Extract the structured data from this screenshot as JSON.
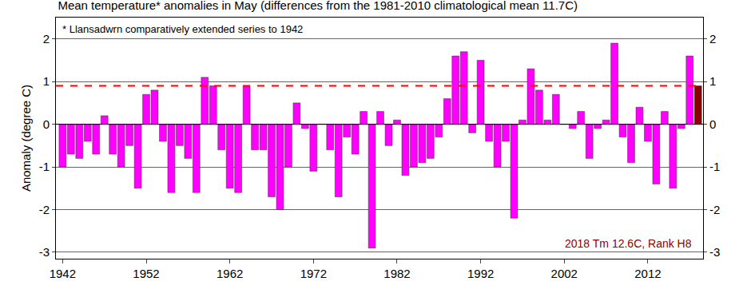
{
  "chart_data": {
    "type": "bar",
    "title": "Mean temperature* anomalies in May (differences from the 1981-2010 climatological mean 11.7C)",
    "y_label": "Anomaly (degree C)",
    "annotations": [
      "* Llansadwrn comparatively extended series to 1942",
      "2018 Tm 12.6C, Rank H8"
    ],
    "x": [
      1942,
      1943,
      1944,
      1945,
      1946,
      1947,
      1948,
      1949,
      1950,
      1951,
      1952,
      1953,
      1954,
      1955,
      1956,
      1957,
      1958,
      1959,
      1960,
      1961,
      1962,
      1963,
      1964,
      1965,
      1966,
      1967,
      1968,
      1969,
      1970,
      1971,
      1972,
      1973,
      1974,
      1975,
      1976,
      1977,
      1978,
      1979,
      1980,
      1981,
      1982,
      1983,
      1984,
      1985,
      1986,
      1987,
      1988,
      1989,
      1990,
      1991,
      1992,
      1993,
      1994,
      1995,
      1996,
      1997,
      1998,
      1999,
      2000,
      2001,
      2002,
      2003,
      2004,
      2005,
      2006,
      2007,
      2008,
      2009,
      2010,
      2011,
      2012,
      2013,
      2014,
      2015,
      2016,
      2017,
      2018
    ],
    "values": [
      -1.0,
      -0.7,
      -0.8,
      -0.4,
      -0.7,
      0.2,
      -0.7,
      -1.0,
      -0.5,
      -1.5,
      0.7,
      0.8,
      -0.4,
      -1.6,
      -0.5,
      -0.8,
      -1.6,
      1.1,
      0.9,
      -0.6,
      -1.5,
      -1.6,
      0.9,
      -0.6,
      -0.6,
      -1.7,
      -2.0,
      -1.0,
      0.5,
      -0.1,
      -1.1,
      0.0,
      -0.6,
      -1.7,
      -0.3,
      -0.7,
      0.3,
      -2.9,
      0.3,
      -0.5,
      0.1,
      -1.2,
      -1.0,
      -0.9,
      -0.8,
      -0.3,
      0.6,
      1.6,
      1.7,
      -0.2,
      1.5,
      -0.4,
      -1.0,
      -0.4,
      -2.2,
      0.1,
      1.3,
      0.8,
      0.1,
      0.7,
      0.0,
      -0.1,
      0.3,
      -0.8,
      -0.1,
      0.1,
      1.9,
      -0.3,
      -0.9,
      0.4,
      -0.4,
      -1.4,
      0.3,
      -1.5,
      -0.1,
      1.6,
      0.9
    ],
    "colors": [
      "#ff00ff",
      "#ff00ff",
      "#ff00ff",
      "#ff00ff",
      "#ff00ff",
      "#ff00ff",
      "#ff00ff",
      "#ff00ff",
      "#ff00ff",
      "#ff00ff",
      "#ff00ff",
      "#ff00ff",
      "#ff00ff",
      "#ff00ff",
      "#ff00ff",
      "#ff00ff",
      "#ff00ff",
      "#ff00ff",
      "#ff00ff",
      "#ff00ff",
      "#ff00ff",
      "#ff00ff",
      "#ff00ff",
      "#ff00ff",
      "#ff00ff",
      "#ff00ff",
      "#ff00ff",
      "#ff00ff",
      "#ff00ff",
      "#ff00ff",
      "#ff00ff",
      "#ff00ff",
      "#ff00ff",
      "#ff00ff",
      "#ff00ff",
      "#ff00ff",
      "#ff00ff",
      "#ff00ff",
      "#ff00ff",
      "#ff00ff",
      "#ff00ff",
      "#ff00ff",
      "#ff00ff",
      "#ff00ff",
      "#ff00ff",
      "#ff00ff",
      "#ff00ff",
      "#ff00ff",
      "#ff00ff",
      "#ff00ff",
      "#ff00ff",
      "#ff00ff",
      "#ff00ff",
      "#ff00ff",
      "#ff00ff",
      "#ff00ff",
      "#ff00ff",
      "#ff00ff",
      "#ff00ff",
      "#ff00ff",
      "#ff00ff",
      "#ff00ff",
      "#ff00ff",
      "#ff00ff",
      "#ff00ff",
      "#ff00ff",
      "#ff00ff",
      "#ff00ff",
      "#ff00ff",
      "#ff00ff",
      "#ff00ff",
      "#ff00ff",
      "#ff00ff",
      "#ff00ff",
      "#ff00ff",
      "#ff00ff",
      "#8b0000"
    ],
    "xlim": [
      1941.2,
      2018.6
    ],
    "xticks": [
      1942,
      1952,
      1962,
      1972,
      1982,
      1992,
      2002,
      2012
    ],
    "ylim": [
      -3.15,
      2.5
    ],
    "yticks": [
      -3,
      -2,
      -1,
      0,
      1,
      2
    ],
    "grid": true
  }
}
